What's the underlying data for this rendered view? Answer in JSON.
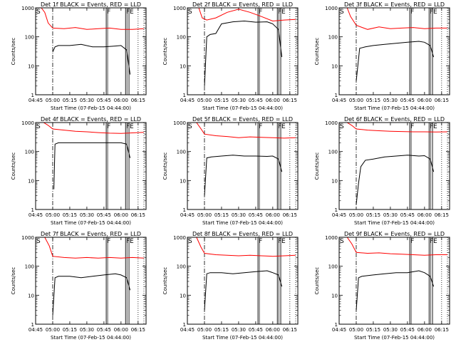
{
  "chart_data": [
    {
      "type": "line",
      "title": "Det 1f BLACK = Events, RED = LLD",
      "xlabel": "Start Time (07-Feb-15 04:44:00)",
      "ylabel": "Counts/sec",
      "x_ticks": [
        "04:45",
        "05:00",
        "05:15",
        "05:30",
        "05:45",
        "06:00",
        "06:15"
      ],
      "y_ticks": [
        "1",
        "10",
        "100",
        "1000"
      ],
      "y_scale": "log",
      "ylim": [
        1,
        1000
      ],
      "xlim": [
        "04:45",
        "06:22"
      ],
      "markers": [
        {
          "label": "S",
          "x": "04:45"
        },
        {
          "label": "F",
          "x": "05:47"
        },
        {
          "label": "F",
          "x": "06:04"
        },
        {
          "label": "E",
          "x": "06:07"
        }
      ],
      "series": [
        {
          "color": "#ff0000",
          "x": [
            "04:46",
            "04:50",
            "04:53",
            "04:56",
            "05:00",
            "05:10",
            "05:20",
            "05:30",
            "05:40",
            "05:50",
            "06:00",
            "06:10",
            "06:20"
          ],
          "values": [
            1000,
            1000,
            700,
            300,
            200,
            190,
            210,
            180,
            190,
            200,
            180,
            180,
            190
          ]
        },
        {
          "color": "#000000",
          "x": [
            "05:00",
            "05:02",
            "05:05",
            "05:15",
            "05:25",
            "05:35",
            "05:45",
            "05:55",
            "06:00",
            "06:05",
            "06:08"
          ],
          "values": [
            30,
            45,
            50,
            50,
            55,
            45,
            45,
            48,
            50,
            35,
            5
          ]
        }
      ]
    },
    {
      "type": "line",
      "title": "Det 2f BLACK = Events, RED = LLD",
      "xlabel": "Start Time (07-Feb-15 04:44:00)",
      "ylabel": "Counts/sec",
      "x_ticks": [
        "04:45",
        "05:00",
        "05:15",
        "05:30",
        "05:45",
        "06:00",
        "06:15"
      ],
      "y_ticks": [
        "1",
        "10",
        "100",
        "1000"
      ],
      "y_scale": "log",
      "ylim": [
        1,
        1000
      ],
      "xlim": [
        "04:45",
        "06:22"
      ],
      "markers": [
        {
          "label": "S",
          "x": "04:45"
        },
        {
          "label": "F",
          "x": "05:47"
        },
        {
          "label": "F",
          "x": "06:04"
        },
        {
          "label": "E",
          "x": "06:07"
        }
      ],
      "series": [
        {
          "color": "#ff0000",
          "x": [
            "04:46",
            "04:55",
            "04:58",
            "05:02",
            "05:10",
            "05:20",
            "05:30",
            "05:40",
            "05:50",
            "06:00",
            "06:10",
            "06:20"
          ],
          "values": [
            1000,
            1000,
            450,
            380,
            450,
            700,
            900,
            700,
            500,
            350,
            380,
            400
          ]
        },
        {
          "color": "#000000",
          "x": [
            "05:00",
            "05:02",
            "05:05",
            "05:10",
            "05:15",
            "05:25",
            "05:35",
            "05:45",
            "05:55",
            "06:00",
            "06:05",
            "06:08"
          ],
          "values": [
            2,
            100,
            120,
            130,
            280,
            330,
            350,
            320,
            330,
            280,
            180,
            20
          ]
        }
      ]
    },
    {
      "type": "line",
      "title": "Det 3f BLACK = Events, RED = LLD",
      "xlabel": "Start Time (07-Feb-15 04:44:00)",
      "ylabel": "Counts/sec",
      "x_ticks": [
        "04:45",
        "05:00",
        "05:15",
        "05:30",
        "05:45",
        "06:00",
        "06:15"
      ],
      "y_ticks": [
        "1",
        "10",
        "100",
        "1000"
      ],
      "y_scale": "log",
      "ylim": [
        1,
        1000
      ],
      "xlim": [
        "04:45",
        "06:22"
      ],
      "markers": [
        {
          "label": "S",
          "x": "04:45"
        },
        {
          "label": "F",
          "x": "05:47"
        },
        {
          "label": "F",
          "x": "06:04"
        },
        {
          "label": "E",
          "x": "06:07"
        }
      ],
      "series": [
        {
          "color": "#ff0000",
          "x": [
            "04:46",
            "04:52",
            "04:55",
            "05:00",
            "05:10",
            "05:20",
            "05:30",
            "05:40",
            "05:50",
            "06:00",
            "06:10",
            "06:20"
          ],
          "values": [
            1000,
            1000,
            500,
            250,
            180,
            220,
            190,
            200,
            210,
            190,
            200,
            200
          ]
        },
        {
          "color": "#000000",
          "x": [
            "05:00",
            "05:03",
            "05:08",
            "05:15",
            "05:25",
            "05:35",
            "05:45",
            "05:55",
            "06:00",
            "06:05",
            "06:08"
          ],
          "values": [
            3,
            40,
            45,
            50,
            55,
            60,
            65,
            70,
            65,
            50,
            20
          ]
        }
      ]
    },
    {
      "type": "line",
      "title": "Det 4f BLACK = Events, RED = LLD",
      "xlabel": "Start Time (07-Feb-15 04:44:00)",
      "ylabel": "Counts/sec",
      "x_ticks": [
        "04:45",
        "05:00",
        "05:15",
        "05:30",
        "05:45",
        "06:00",
        "06:15"
      ],
      "y_ticks": [
        "1",
        "10",
        "100",
        "1000"
      ],
      "y_scale": "log",
      "ylim": [
        1,
        1000
      ],
      "xlim": [
        "04:45",
        "06:22"
      ],
      "markers": [
        {
          "label": "S",
          "x": "04:45"
        },
        {
          "label": "F",
          "x": "05:47"
        },
        {
          "label": "F",
          "x": "06:04"
        },
        {
          "label": "E",
          "x": "06:07"
        }
      ],
      "series": [
        {
          "color": "#ff0000",
          "x": [
            "04:46",
            "04:52",
            "04:56",
            "05:00",
            "05:10",
            "05:20",
            "05:30",
            "05:40",
            "05:50",
            "06:00",
            "06:10",
            "06:20"
          ],
          "values": [
            1000,
            1000,
            800,
            600,
            550,
            500,
            480,
            450,
            430,
            420,
            440,
            460
          ]
        },
        {
          "color": "#000000",
          "x": [
            "05:01",
            "05:02",
            "05:05",
            "05:15",
            "05:25",
            "05:35",
            "05:45",
            "05:55",
            "06:00",
            "06:05",
            "06:08"
          ],
          "values": [
            5,
            180,
            200,
            200,
            200,
            200,
            200,
            200,
            200,
            180,
            60
          ]
        }
      ]
    },
    {
      "type": "line",
      "title": "Det 5f BLACK = Events, RED = LLD",
      "xlabel": "Start Time (07-Feb-15 04:44:00)",
      "ylabel": "Counts/sec",
      "x_ticks": [
        "04:45",
        "05:00",
        "05:15",
        "05:30",
        "05:45",
        "06:00",
        "06:15"
      ],
      "y_ticks": [
        "1",
        "10",
        "100",
        "1000"
      ],
      "y_scale": "log",
      "ylim": [
        1,
        1000
      ],
      "xlim": [
        "04:45",
        "06:22"
      ],
      "markers": [
        {
          "label": "S",
          "x": "04:45"
        },
        {
          "label": "F",
          "x": "05:47"
        },
        {
          "label": "F",
          "x": "06:04"
        },
        {
          "label": "E",
          "x": "06:07"
        }
      ],
      "series": [
        {
          "color": "#ff0000",
          "x": [
            "04:46",
            "04:53",
            "04:57",
            "05:00",
            "05:10",
            "05:20",
            "05:30",
            "05:40",
            "05:50",
            "06:00",
            "06:10",
            "06:20"
          ],
          "values": [
            1000,
            1000,
            600,
            400,
            350,
            330,
            300,
            320,
            310,
            300,
            290,
            300
          ]
        },
        {
          "color": "#000000",
          "x": [
            "05:00",
            "05:02",
            "05:06",
            "05:15",
            "05:25",
            "05:35",
            "05:45",
            "05:55",
            "06:00",
            "06:05",
            "06:08"
          ],
          "values": [
            3,
            60,
            65,
            70,
            75,
            70,
            70,
            68,
            70,
            55,
            20
          ]
        }
      ]
    },
    {
      "type": "line",
      "title": "Det 6f BLACK = Events, RED = LLD",
      "xlabel": "Start Time (07-Feb-15 04:44:00)",
      "ylabel": "Counts/sec",
      "x_ticks": [
        "04:45",
        "05:00",
        "05:15",
        "05:30",
        "05:45",
        "06:00",
        "06:15"
      ],
      "y_ticks": [
        "1",
        "10",
        "100",
        "1000"
      ],
      "y_scale": "log",
      "ylim": [
        1,
        1000
      ],
      "xlim": [
        "04:45",
        "06:22"
      ],
      "markers": [
        {
          "label": "S",
          "x": "04:45"
        },
        {
          "label": "F",
          "x": "05:47"
        },
        {
          "label": "F",
          "x": "06:04"
        },
        {
          "label": "E",
          "x": "06:07"
        }
      ],
      "series": [
        {
          "color": "#ff0000",
          "x": [
            "04:46",
            "04:52",
            "04:56",
            "05:00",
            "05:10",
            "05:20",
            "05:30",
            "05:40",
            "05:50",
            "06:00",
            "06:10",
            "06:20"
          ],
          "values": [
            1000,
            1000,
            800,
            600,
            550,
            520,
            500,
            490,
            480,
            480,
            470,
            480
          ]
        },
        {
          "color": "#000000",
          "x": [
            "05:00",
            "05:02",
            "05:04",
            "05:08",
            "05:15",
            "05:25",
            "05:35",
            "05:45",
            "05:55",
            "06:00",
            "06:05",
            "06:08"
          ],
          "values": [
            1.5,
            8,
            30,
            50,
            55,
            65,
            70,
            75,
            70,
            72,
            55,
            20
          ]
        }
      ]
    },
    {
      "type": "line",
      "title": "Det 7f BLACK = Events, RED = LLD",
      "xlabel": "Start Time (07-Feb-15 04:44:00)",
      "ylabel": "Counts/sec",
      "x_ticks": [
        "04:45",
        "05:00",
        "05:15",
        "05:30",
        "05:45",
        "06:00",
        "06:15"
      ],
      "y_ticks": [
        "1",
        "10",
        "100",
        "1000"
      ],
      "y_scale": "log",
      "ylim": [
        1,
        1000
      ],
      "xlim": [
        "04:45",
        "06:22"
      ],
      "markers": [
        {
          "label": "S",
          "x": "04:45"
        },
        {
          "label": "F",
          "x": "05:47"
        },
        {
          "label": "F",
          "x": "06:04"
        },
        {
          "label": "E",
          "x": "06:07"
        }
      ],
      "series": [
        {
          "color": "#ff0000",
          "x": [
            "04:46",
            "04:53",
            "04:57",
            "05:00",
            "05:10",
            "05:20",
            "05:30",
            "05:40",
            "05:50",
            "06:00",
            "06:10",
            "06:20"
          ],
          "values": [
            1000,
            1000,
            500,
            220,
            200,
            190,
            200,
            190,
            200,
            190,
            200,
            190
          ]
        },
        {
          "color": "#000000",
          "x": [
            "05:00",
            "05:02",
            "05:05",
            "05:15",
            "05:25",
            "05:35",
            "05:45",
            "05:55",
            "06:00",
            "06:05",
            "06:08"
          ],
          "values": [
            2,
            40,
            45,
            45,
            40,
            45,
            50,
            55,
            50,
            40,
            15
          ]
        }
      ]
    },
    {
      "type": "line",
      "title": "Det 8f BLACK = Events, RED = LLD",
      "xlabel": "Start Time (07-Feb-15 04:44:00)",
      "ylabel": "Counts/sec",
      "x_ticks": [
        "04:45",
        "05:00",
        "05:15",
        "05:30",
        "05:45",
        "06:00",
        "06:15"
      ],
      "y_ticks": [
        "1",
        "10",
        "100",
        "1000"
      ],
      "y_scale": "log",
      "ylim": [
        1,
        1000
      ],
      "xlim": [
        "04:45",
        "06:22"
      ],
      "markers": [
        {
          "label": "S",
          "x": "04:45"
        },
        {
          "label": "F",
          "x": "05:47"
        },
        {
          "label": "F",
          "x": "06:04"
        },
        {
          "label": "E",
          "x": "06:07"
        }
      ],
      "series": [
        {
          "color": "#ff0000",
          "x": [
            "04:46",
            "04:53",
            "04:57",
            "05:00",
            "05:10",
            "05:20",
            "05:30",
            "05:40",
            "05:50",
            "06:00",
            "06:10",
            "06:20"
          ],
          "values": [
            1000,
            1000,
            450,
            280,
            250,
            240,
            230,
            240,
            230,
            220,
            230,
            240
          ]
        },
        {
          "color": "#000000",
          "x": [
            "05:00",
            "05:02",
            "05:05",
            "05:15",
            "05:25",
            "05:35",
            "05:45",
            "05:55",
            "06:00",
            "06:05",
            "06:08"
          ],
          "values": [
            3,
            55,
            60,
            60,
            55,
            60,
            65,
            70,
            60,
            50,
            20
          ]
        }
      ]
    },
    {
      "type": "line",
      "title": "Det 9f BLACK = Events, RED = LLD",
      "xlabel": "Start Time (07-Feb-15 04:44:00)",
      "ylabel": "Counts/sec",
      "x_ticks": [
        "04:45",
        "05:00",
        "05:15",
        "05:30",
        "05:45",
        "06:00",
        "06:15"
      ],
      "y_ticks": [
        "1",
        "10",
        "100",
        "1000"
      ],
      "y_scale": "log",
      "ylim": [
        1,
        1000
      ],
      "xlim": [
        "04:45",
        "06:22"
      ],
      "markers": [
        {
          "label": "S",
          "x": "04:45"
        },
        {
          "label": "F",
          "x": "05:47"
        },
        {
          "label": "F",
          "x": "06:04"
        },
        {
          "label": "E",
          "x": "06:07"
        }
      ],
      "series": [
        {
          "color": "#ff0000",
          "x": [
            "04:46",
            "04:52",
            "04:56",
            "05:00",
            "05:10",
            "05:20",
            "05:30",
            "05:40",
            "05:50",
            "06:00",
            "06:10",
            "06:20"
          ],
          "values": [
            1000,
            1000,
            600,
            300,
            280,
            290,
            270,
            260,
            250,
            240,
            250,
            250
          ]
        },
        {
          "color": "#000000",
          "x": [
            "05:00",
            "05:02",
            "05:05",
            "05:15",
            "05:25",
            "05:35",
            "05:45",
            "05:55",
            "06:00",
            "06:05",
            "06:08"
          ],
          "values": [
            3,
            40,
            45,
            50,
            55,
            60,
            60,
            70,
            60,
            45,
            20
          ]
        }
      ]
    }
  ]
}
